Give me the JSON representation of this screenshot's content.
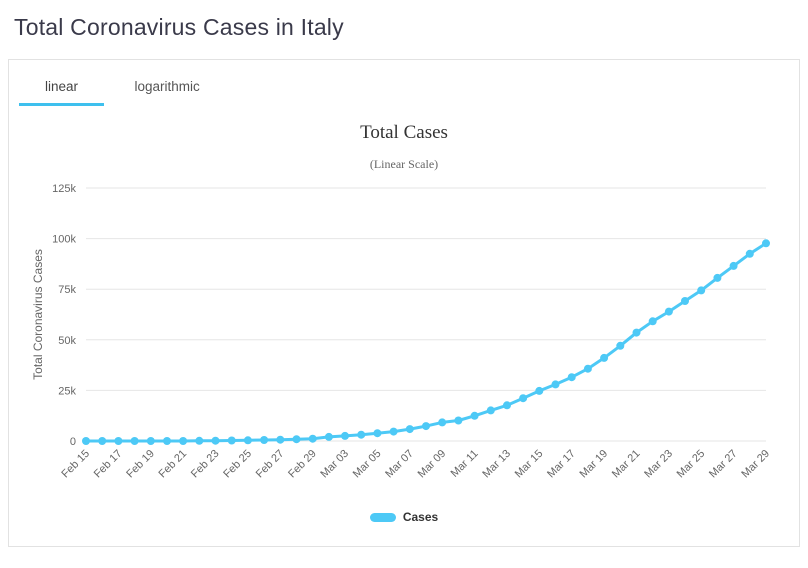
{
  "page": {
    "title": "Total Coronavirus Cases in Italy"
  },
  "tabs": [
    {
      "label": "linear",
      "active": true
    },
    {
      "label": "logarithmic",
      "active": false
    }
  ],
  "colors": {
    "series": "#4dc9f6",
    "tab_underline": "#3ec0ee",
    "gridline": "#e6e6e6",
    "tick_text": "#666666",
    "title_text": "#333333",
    "page_title_text": "#3a3a4a"
  },
  "chart_data": {
    "type": "line",
    "title": "Total Cases",
    "subtitle": "(Linear Scale)",
    "xlabel": "",
    "ylabel": "Total Coronavirus Cases",
    "ylim": [
      0,
      125000
    ],
    "yticks": [
      0,
      25000,
      50000,
      75000,
      100000,
      125000
    ],
    "ytick_labels": [
      "0",
      "25k",
      "50k",
      "75k",
      "100k",
      "125k"
    ],
    "xtick_every": 2,
    "grid": true,
    "legend_position": "bottom",
    "categories": [
      "Feb 15",
      "Feb 16",
      "Feb 17",
      "Feb 18",
      "Feb 19",
      "Feb 20",
      "Feb 21",
      "Feb 22",
      "Feb 23",
      "Feb 24",
      "Feb 25",
      "Feb 26",
      "Feb 27",
      "Feb 28",
      "Feb 29",
      "Mar 02",
      "Mar 03",
      "Mar 04",
      "Mar 05",
      "Mar 06",
      "Mar 07",
      "Mar 08",
      "Mar 09",
      "Mar 10",
      "Mar 11",
      "Mar 12",
      "Mar 13",
      "Mar 14",
      "Mar 15",
      "Mar 16",
      "Mar 17",
      "Mar 18",
      "Mar 19",
      "Mar 20",
      "Mar 21",
      "Mar 22",
      "Mar 23",
      "Mar 24",
      "Mar 25",
      "Mar 26",
      "Mar 27",
      "Mar 28",
      "Mar 29"
    ],
    "series": [
      {
        "name": "Cases",
        "color": "#4dc9f6",
        "values": [
          3,
          3,
          3,
          3,
          3,
          4,
          21,
          79,
          157,
          229,
          323,
          470,
          655,
          889,
          1128,
          2036,
          2502,
          3089,
          3858,
          4636,
          5883,
          7375,
          9172,
          10149,
          12462,
          15113,
          17660,
          21157,
          24747,
          27980,
          31506,
          35713,
          41035,
          47021,
          53578,
          59138,
          63927,
          69176,
          74386,
          80589,
          86498,
          92472,
          97689
        ]
      }
    ]
  }
}
